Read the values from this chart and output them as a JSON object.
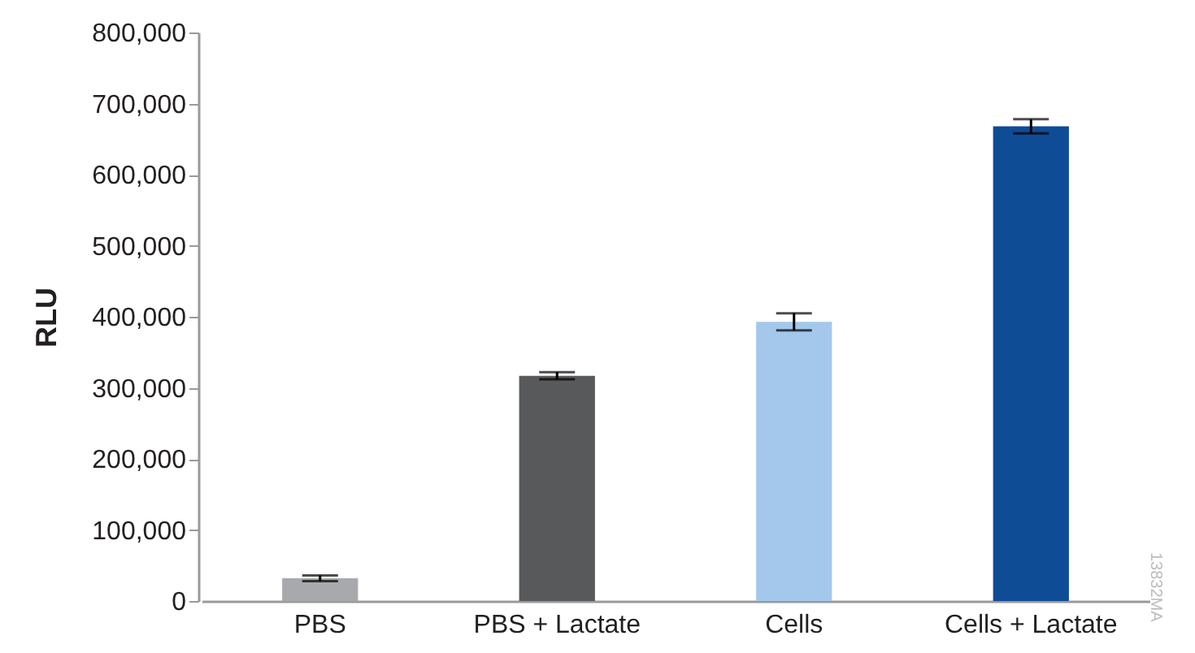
{
  "chart_data": {
    "type": "bar",
    "ylabel": "RLU",
    "categories": [
      "PBS",
      "PBS + Lactate",
      "Cells",
      "Cells + Lactate"
    ],
    "values": [
      32000,
      317000,
      393000,
      668000
    ],
    "errors": [
      4000,
      5000,
      12000,
      10000
    ],
    "colors": [
      "#a7a9ac",
      "#58595b",
      "#a3c8eb",
      "#0f4c96"
    ],
    "ylim": [
      0,
      800000
    ],
    "yticks": [
      0,
      {
        "value": 100000,
        "label": "100,000"
      },
      {
        "value": 200000,
        "label": "200,000"
      },
      {
        "value": 300000,
        "label": "300,000"
      },
      {
        "value": 400000,
        "label": "400,000"
      },
      {
        "value": 500000,
        "label": "500,000"
      },
      {
        "value": 600000,
        "label": "600,000"
      },
      {
        "value": 700000,
        "label": "700,000"
      },
      {
        "value": 800000,
        "label": "800,000"
      }
    ],
    "grid": false,
    "annotations": [
      "13832MA"
    ]
  }
}
